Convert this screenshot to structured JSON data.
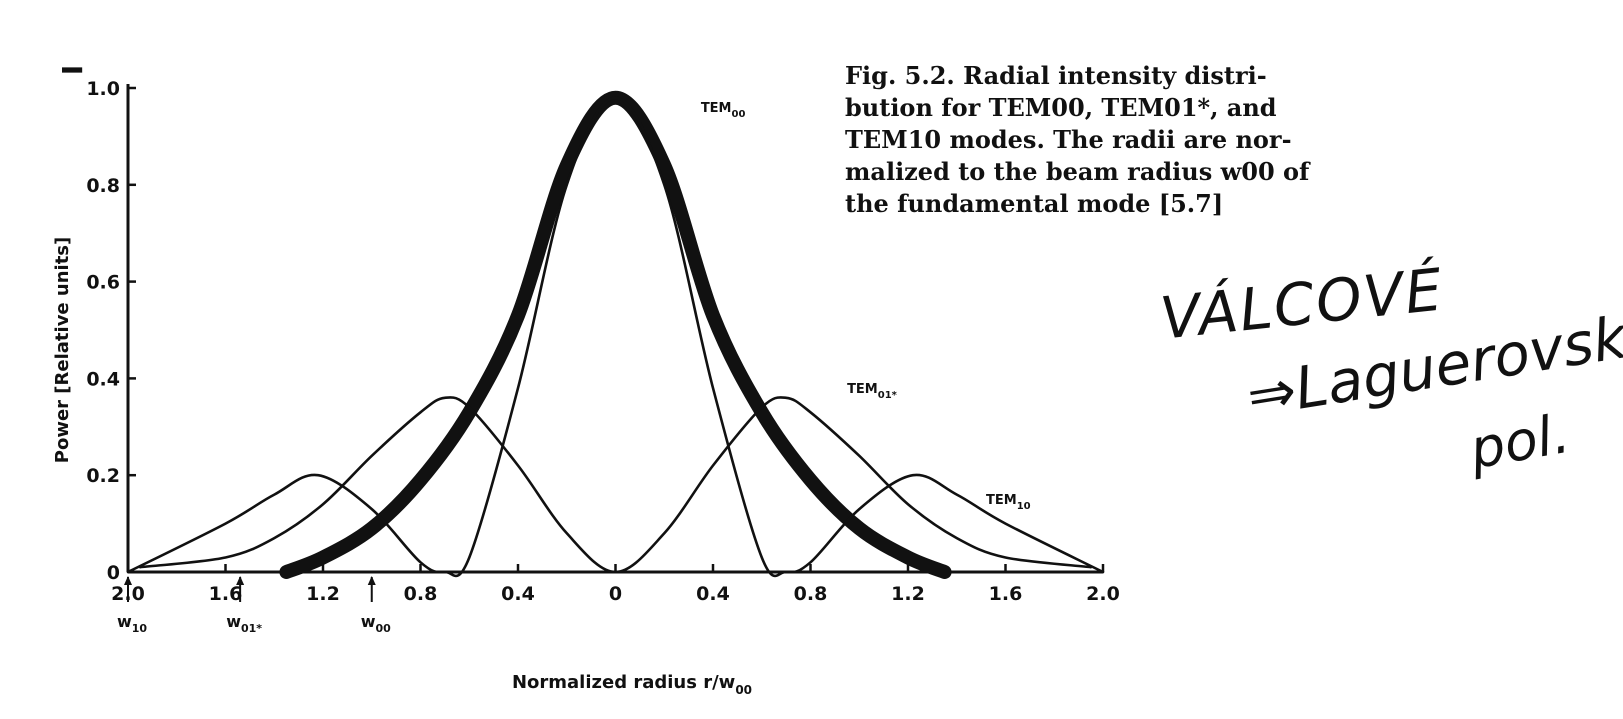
{
  "chart_data": {
    "type": "line",
    "ylabel": "Power [Relative units]",
    "xlabel": "Normalized radius r/w",
    "xlabel_subscript": "00",
    "y_axis_symbol": "I",
    "ylim": [
      0,
      1.0
    ],
    "xlim": [
      -2.0,
      2.0
    ],
    "x_ticks": [
      {
        "value": -2.0,
        "label": "2.0"
      },
      {
        "value": -1.6,
        "label": "1.6"
      },
      {
        "value": -1.2,
        "label": "1.2"
      },
      {
        "value": -0.8,
        "label": "0.8"
      },
      {
        "value": -0.4,
        "label": "0.4"
      },
      {
        "value": 0,
        "label": "0"
      },
      {
        "value": 0.4,
        "label": "0.4"
      },
      {
        "value": 0.8,
        "label": "0.8"
      },
      {
        "value": 1.2,
        "label": "1.2"
      },
      {
        "value": 1.6,
        "label": "1.6"
      },
      {
        "value": 2.0,
        "label": "2.0"
      }
    ],
    "y_ticks": [
      {
        "value": 0,
        "label": "0"
      },
      {
        "value": 0.2,
        "label": "0.2"
      },
      {
        "value": 0.4,
        "label": "0.4"
      },
      {
        "value": 0.6,
        "label": "0.6"
      },
      {
        "value": 0.8,
        "label": "0.8"
      },
      {
        "value": 1.0,
        "label": "1.0"
      }
    ],
    "series": [
      {
        "name": "TEM00",
        "label_text": "TEM",
        "label_sub": "00",
        "style": "heavy",
        "x": [
          -1.35,
          -1.2,
          -1.0,
          -0.8,
          -0.6,
          -0.4,
          -0.2,
          0,
          0.2,
          0.4,
          0.6,
          0.8,
          1.0,
          1.2,
          1.35
        ],
        "y": [
          0.0,
          0.03,
          0.09,
          0.19,
          0.33,
          0.53,
          0.84,
          0.98,
          0.84,
          0.53,
          0.33,
          0.19,
          0.09,
          0.03,
          0.0
        ]
      },
      {
        "name": "TEM01*",
        "label_text": "TEM",
        "label_sub": "01*",
        "style": "thin",
        "x": [
          -1.95,
          -1.6,
          -1.4,
          -1.2,
          -1.0,
          -0.8,
          -0.7,
          -0.6,
          -0.4,
          -0.2,
          0,
          0.2,
          0.4,
          0.6,
          0.7,
          0.8,
          1.0,
          1.2,
          1.4,
          1.6,
          1.95
        ],
        "y": [
          0.01,
          0.03,
          0.07,
          0.14,
          0.24,
          0.33,
          0.36,
          0.34,
          0.22,
          0.08,
          0.0,
          0.08,
          0.22,
          0.34,
          0.36,
          0.33,
          0.24,
          0.14,
          0.07,
          0.03,
          0.01
        ]
      },
      {
        "name": "TEM10",
        "label_text": "TEM",
        "label_sub": "10",
        "style": "thin",
        "x": [
          -2.0,
          -1.6,
          -1.4,
          -1.22,
          -1.0,
          -0.8,
          -0.7,
          -0.6,
          -0.4,
          -0.2,
          0,
          0.2,
          0.4,
          0.6,
          0.7,
          0.8,
          1.0,
          1.22,
          1.4,
          1.6,
          2.0
        ],
        "y": [
          0.0,
          0.1,
          0.16,
          0.2,
          0.13,
          0.02,
          0.0,
          0.03,
          0.38,
          0.8,
          0.98,
          0.8,
          0.38,
          0.03,
          0.0,
          0.02,
          0.13,
          0.2,
          0.16,
          0.1,
          0.0
        ]
      }
    ],
    "beam_radius_markers": [
      {
        "x": -2.0,
        "label": "w",
        "sub": "10"
      },
      {
        "x": -1.54,
        "label": "w",
        "sub": "01*"
      },
      {
        "x": -1.0,
        "label": "w",
        "sub": "00"
      }
    ]
  },
  "caption": {
    "lines": [
      "Fig. 5.2. Radial intensity distri-",
      "bution for TEM00, TEM01*, and",
      "TEM10 modes. The radii are nor-",
      "malized to the beam radius w00 of",
      "the fundamental mode [5.7]"
    ]
  },
  "handwritten_notes": [
    "VÁLCOVÉ",
    "⇒Laguerovské",
    "pol."
  ]
}
